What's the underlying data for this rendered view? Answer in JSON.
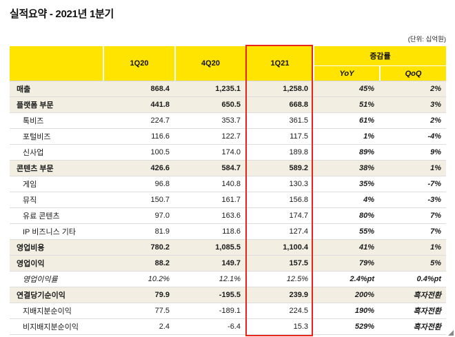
{
  "page": {
    "title": "실적요약 - 2021년 1분기",
    "unit_note": "(단위: 십억원)"
  },
  "table": {
    "col_headers": [
      "1Q20",
      "4Q20",
      "1Q21"
    ],
    "change_header": "증감률",
    "change_subheaders": [
      "YoY",
      "QoQ"
    ],
    "highlighted_column": "1Q21",
    "rows": [
      {
        "label": "매출",
        "style": "section",
        "values": [
          "868.4",
          "1,235.1",
          "1,258.0",
          "45%",
          "2%"
        ]
      },
      {
        "label": "플랫폼 부문",
        "style": "section",
        "values": [
          "441.8",
          "650.5",
          "668.8",
          "51%",
          "3%"
        ]
      },
      {
        "label": "톡비즈",
        "style": "detail",
        "values": [
          "224.7",
          "353.7",
          "361.5",
          "61%",
          "2%"
        ]
      },
      {
        "label": "포털비즈",
        "style": "detail",
        "values": [
          "116.6",
          "122.7",
          "117.5",
          "1%",
          "-4%"
        ]
      },
      {
        "label": "신사업",
        "style": "detail",
        "values": [
          "100.5",
          "174.0",
          "189.8",
          "89%",
          "9%"
        ]
      },
      {
        "label": "콘텐츠 부문",
        "style": "section",
        "values": [
          "426.6",
          "584.7",
          "589.2",
          "38%",
          "1%"
        ]
      },
      {
        "label": "게임",
        "style": "detail",
        "values": [
          "96.8",
          "140.8",
          "130.3",
          "35%",
          "-7%"
        ]
      },
      {
        "label": "뮤직",
        "style": "detail",
        "values": [
          "150.7",
          "161.7",
          "156.8",
          "4%",
          "-3%"
        ]
      },
      {
        "label": "유료 콘텐츠",
        "style": "detail",
        "values": [
          "97.0",
          "163.6",
          "174.7",
          "80%",
          "7%"
        ]
      },
      {
        "label": "IP 비즈니스 기타",
        "style": "detail",
        "values": [
          "81.9",
          "118.6",
          "127.4",
          "55%",
          "7%"
        ]
      },
      {
        "label": "영업비용",
        "style": "section",
        "values": [
          "780.2",
          "1,085.5",
          "1,100.4",
          "41%",
          "1%"
        ]
      },
      {
        "label": "영업이익",
        "style": "section",
        "values": [
          "88.2",
          "149.7",
          "157.5",
          "79%",
          "5%"
        ]
      },
      {
        "label": "영업이익률",
        "style": "italic",
        "values": [
          "10.2%",
          "12.1%",
          "12.5%",
          "2.4%pt",
          "0.4%pt"
        ]
      },
      {
        "label": "연결당기순이익",
        "style": "section",
        "values": [
          "79.9",
          "-195.5",
          "239.9",
          "200%",
          "흑자전환"
        ]
      },
      {
        "label": "지배지분순이익",
        "style": "detail",
        "values": [
          "77.5",
          "-189.1",
          "224.5",
          "190%",
          "흑자전환"
        ]
      },
      {
        "label": "비지배지분순이익",
        "style": "detail",
        "values": [
          "2.4",
          "-6.4",
          "15.3",
          "529%",
          "흑자전환"
        ]
      }
    ]
  },
  "colors": {
    "header_yellow": "#FFE400",
    "section_row_bg": "#F2EFE2",
    "highlight_red": "#E8231A"
  }
}
